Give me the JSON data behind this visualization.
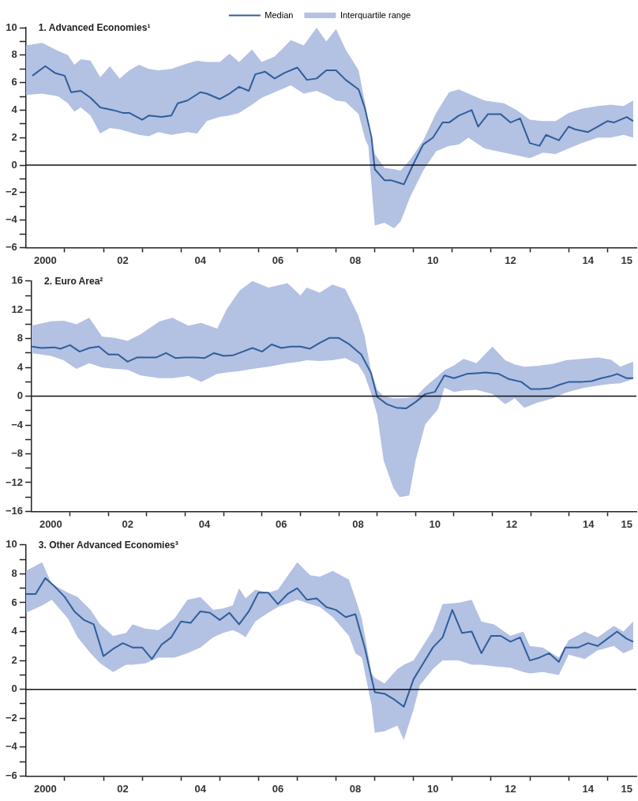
{
  "chart_data": [
    {
      "type": "line",
      "title": "1. Advanced Economies¹",
      "legend": "top",
      "xlim": [
        "2000-01",
        "2015-10"
      ],
      "xticks": [
        {
          "value": "2000-07",
          "label": "2000"
        },
        {
          "value": "2001",
          "label": null
        },
        {
          "value": "2002",
          "label": null
        },
        {
          "value": "2002-07",
          "label": "02"
        },
        {
          "value": "2003",
          "label": null
        },
        {
          "value": "2004",
          "label": null
        },
        {
          "value": "2004-07",
          "label": "04"
        },
        {
          "value": "2005",
          "label": null
        },
        {
          "value": "2006",
          "label": null
        },
        {
          "value": "2006-07",
          "label": "06"
        },
        {
          "value": "2007",
          "label": null
        },
        {
          "value": "2008",
          "label": null
        },
        {
          "value": "2008-07",
          "label": "08"
        },
        {
          "value": "2009",
          "label": null
        },
        {
          "value": "2010",
          "label": null
        },
        {
          "value": "2010-07",
          "label": "10"
        },
        {
          "value": "2011",
          "label": null
        },
        {
          "value": "2012",
          "label": null
        },
        {
          "value": "2012-07",
          "label": "12"
        },
        {
          "value": "2013",
          "label": null
        },
        {
          "value": "2014",
          "label": null
        },
        {
          "value": "2014-07",
          "label": "14"
        },
        {
          "value": "2015",
          "label": null
        },
        {
          "value": "2015-07",
          "label": "15"
        }
      ],
      "ylim": [
        -6,
        10
      ],
      "yticks": [
        -6,
        {
          "value": -5,
          "label": null
        },
        -4,
        {
          "value": -3,
          "label": null
        },
        -2,
        {
          "value": -1,
          "label": null
        },
        0,
        {
          "value": 1,
          "label": null
        },
        2,
        {
          "value": 3,
          "label": null
        },
        4,
        {
          "value": 5,
          "label": null
        },
        6,
        {
          "value": 7,
          "label": null
        },
        8,
        {
          "value": 9,
          "label": null
        },
        10
      ],
      "ref_lines": [
        {
          "axis": "y",
          "value": 0,
          "color": "#111111"
        }
      ],
      "series": [
        {
          "name": "Median",
          "type": "line",
          "color": "#2f5e9a",
          "x": [
            "2000-03",
            "2000-07",
            "2000-10",
            "2001-01",
            "2001-03",
            "2001-06",
            "2001-09",
            "2001-12",
            "2002-04",
            "2002-07",
            "2002-09",
            "2003-01",
            "2003-03",
            "2003-07",
            "2003-10",
            "2003-12",
            "2004-03",
            "2004-07",
            "2004-09",
            "2005-01",
            "2005-04",
            "2005-07",
            "2005-10",
            "2005-12",
            "2006-03",
            "2006-06",
            "2006-09",
            "2007-01",
            "2007-04",
            "2007-07",
            "2007-10",
            "2008-01",
            "2008-04",
            "2008-08",
            "2008-10",
            "2008-12",
            "2009-01",
            "2009-04",
            "2009-06",
            "2009-10",
            "2010-01",
            "2010-04",
            "2010-07",
            "2010-10",
            "2010-12",
            "2011-03",
            "2011-07",
            "2011-09",
            "2011-12",
            "2012-04",
            "2012-07",
            "2012-10",
            "2013-01",
            "2013-04",
            "2013-06",
            "2013-10",
            "2014-01",
            "2014-03",
            "2014-07",
            "2014-10",
            "2015-01",
            "2015-03",
            "2015-07",
            "2015-09"
          ],
          "values": [
            6.5,
            7.2,
            6.7,
            6.5,
            5.3,
            5.4,
            4.9,
            4.2,
            4.0,
            3.8,
            3.8,
            3.3,
            3.6,
            3.5,
            3.6,
            4.5,
            4.7,
            5.3,
            5.2,
            4.8,
            5.2,
            5.7,
            5.4,
            6.6,
            6.8,
            6.3,
            6.7,
            7.1,
            6.2,
            6.3,
            6.9,
            6.9,
            6.2,
            5.5,
            4.1,
            2.0,
            -0.3,
            -1.1,
            -1.1,
            -1.4,
            0.1,
            1.5,
            2.0,
            3.1,
            3.1,
            3.6,
            4.0,
            2.8,
            3.7,
            3.7,
            3.1,
            3.4,
            1.6,
            1.4,
            2.2,
            1.8,
            2.8,
            2.6,
            2.4,
            2.8,
            3.2,
            3.1,
            3.5,
            3.2
          ]
        },
        {
          "name": "Interquartile range",
          "type": "line",
          "color": "#b3c1e3",
          "x": [
            "2000-01",
            "2000-06",
            "2000-11",
            "2001-02",
            "2001-04",
            "2001-06",
            "2001-09",
            "2001-12",
            "2002-03",
            "2002-06",
            "2002-09",
            "2002-12",
            "2003-03",
            "2003-06",
            "2003-10",
            "2004-03",
            "2004-06",
            "2004-09",
            "2005-01",
            "2005-04",
            "2005-07",
            "2005-11",
            "2006-02",
            "2006-06",
            "2006-09",
            "2006-11",
            "2007-03",
            "2007-07",
            "2007-10",
            "2008-01",
            "2008-04",
            "2008-08",
            "2008-10",
            "2008-11",
            "2009-01",
            "2009-04",
            "2009-07",
            "2009-09",
            "2009-12",
            "2010-04",
            "2010-08",
            "2010-12",
            "2011-03",
            "2011-06",
            "2011-11",
            "2012-05",
            "2012-09",
            "2013-01",
            "2013-05",
            "2013-09",
            "2014-01",
            "2014-05",
            "2014-10",
            "2015-02",
            "2015-06",
            "2015-09"
          ],
          "upper": [
            8.7,
            8.9,
            8.3,
            8.0,
            7.3,
            7.7,
            7.6,
            6.4,
            7.2,
            6.3,
            6.9,
            7.3,
            7.0,
            6.9,
            7.0,
            7.4,
            7.6,
            7.5,
            7.5,
            8.1,
            7.5,
            8.4,
            7.5,
            7.9,
            8.6,
            9.1,
            8.7,
            10.0,
            9.0,
            9.9,
            8.4,
            6.9,
            4.5,
            2.7,
            0.8,
            -0.2,
            -0.3,
            -0.4,
            0.4,
            1.8,
            3.8,
            5.3,
            5.5,
            5.2,
            4.7,
            4.5,
            4.0,
            3.3,
            3.2,
            3.2,
            3.8,
            4.1,
            4.3,
            4.4,
            4.3,
            4.7
          ],
          "values": [
            null,
            null,
            null,
            null,
            null,
            null,
            null,
            null,
            null,
            null,
            null,
            null,
            null,
            null,
            null,
            null,
            null,
            null,
            null,
            null,
            null,
            null,
            null,
            null,
            null,
            null,
            null,
            null,
            null,
            null,
            null,
            null,
            null,
            null,
            null,
            null,
            null,
            null,
            null,
            null,
            null,
            null,
            null,
            null,
            null,
            null,
            null,
            null,
            null,
            null,
            null,
            null,
            null,
            null,
            null,
            null
          ],
          "lower": [
            5.1,
            5.2,
            5.0,
            4.5,
            3.9,
            4.2,
            3.6,
            2.3,
            2.7,
            2.6,
            2.4,
            2.2,
            2.1,
            2.4,
            2.2,
            2.4,
            2.3,
            3.2,
            3.5,
            3.6,
            3.8,
            4.4,
            4.9,
            5.3,
            5.6,
            5.8,
            5.2,
            5.4,
            5.1,
            4.7,
            4.6,
            3.7,
            1.9,
            1.4,
            -4.4,
            -4.2,
            -4.6,
            -4.1,
            -2.3,
            -0.4,
            1.0,
            1.4,
            1.5,
            2.0,
            1.2,
            0.9,
            0.7,
            0.5,
            0.9,
            0.8,
            1.2,
            1.6,
            2.0,
            2.0,
            2.2,
            2.0
          ]
        }
      ]
    },
    {
      "type": "line",
      "title": "2. Euro Area²",
      "xlim": [
        "2000-01",
        "2015-10"
      ],
      "xticks": [
        {
          "value": "2000-07",
          "label": "2000"
        },
        {
          "value": "2001",
          "label": null
        },
        {
          "value": "2002",
          "label": null
        },
        {
          "value": "2002-07",
          "label": "02"
        },
        {
          "value": "2003",
          "label": null
        },
        {
          "value": "2004",
          "label": null
        },
        {
          "value": "2004-07",
          "label": "04"
        },
        {
          "value": "2005",
          "label": null
        },
        {
          "value": "2006",
          "label": null
        },
        {
          "value": "2006-07",
          "label": "06"
        },
        {
          "value": "2007",
          "label": null
        },
        {
          "value": "2008",
          "label": null
        },
        {
          "value": "2008-07",
          "label": "08"
        },
        {
          "value": "2009",
          "label": null
        },
        {
          "value": "2010",
          "label": null
        },
        {
          "value": "2010-07",
          "label": "10"
        },
        {
          "value": "2011",
          "label": null
        },
        {
          "value": "2012",
          "label": null
        },
        {
          "value": "2012-07",
          "label": "12"
        },
        {
          "value": "2013",
          "label": null
        },
        {
          "value": "2014",
          "label": null
        },
        {
          "value": "2014-07",
          "label": "14"
        },
        {
          "value": "2015",
          "label": null
        },
        {
          "value": "2015-07",
          "label": "15"
        }
      ],
      "ylim": [
        -16,
        16
      ],
      "yticks": [
        -16,
        {
          "value": -14,
          "label": null
        },
        -12,
        {
          "value": -10,
          "label": null
        },
        -8,
        {
          "value": -6,
          "label": null
        },
        -4,
        {
          "value": -2,
          "label": null
        },
        0,
        {
          "value": 2,
          "label": null
        },
        4,
        {
          "value": 6,
          "label": null
        },
        8,
        {
          "value": 10,
          "label": null
        },
        12,
        {
          "value": 14,
          "label": null
        },
        16
      ],
      "ref_lines": [
        {
          "axis": "y",
          "value": 0,
          "color": "#111111"
        }
      ],
      "series": [
        {
          "type": "line",
          "color": "#2f5e9a",
          "x": [
            "2000-01",
            "2000-04",
            "2000-08",
            "2000-10",
            "2001-01",
            "2001-04",
            "2001-07",
            "2001-10",
            "2002-01",
            "2002-04",
            "2002-07",
            "2002-10",
            "2003-01",
            "2003-04",
            "2003-07",
            "2003-10",
            "2004-01",
            "2004-04",
            "2004-07",
            "2004-10",
            "2005-01",
            "2005-04",
            "2005-07",
            "2005-10",
            "2006-01",
            "2006-04",
            "2006-07",
            "2006-10",
            "2007-01",
            "2007-04",
            "2007-07",
            "2007-10",
            "2008-01",
            "2008-04",
            "2008-08",
            "2008-11",
            "2009-01",
            "2009-04",
            "2009-07",
            "2009-10",
            "2010-01",
            "2010-04",
            "2010-07",
            "2010-10",
            "2011-01",
            "2011-05",
            "2011-08",
            "2011-11",
            "2012-03",
            "2012-06",
            "2012-10",
            "2013-01",
            "2013-04",
            "2013-07",
            "2013-10",
            "2014-01",
            "2014-05",
            "2014-08",
            "2014-11",
            "2015-02",
            "2015-04",
            "2015-07",
            "2015-09"
          ],
          "values": [
            6.9,
            6.7,
            6.8,
            6.6,
            7.1,
            6.2,
            6.7,
            6.9,
            5.8,
            5.8,
            4.8,
            5.4,
            5.4,
            5.4,
            6.0,
            5.3,
            5.4,
            5.4,
            5.3,
            6.0,
            5.6,
            5.7,
            6.2,
            6.7,
            6.2,
            7.2,
            6.7,
            6.9,
            6.9,
            6.6,
            7.4,
            8.1,
            8.1,
            7.3,
            5.8,
            3.3,
            -0.1,
            -1.1,
            -1.6,
            -1.7,
            -0.8,
            0.3,
            0.6,
            2.9,
            2.5,
            3.1,
            3.2,
            3.3,
            3.1,
            2.4,
            2.0,
            1.0,
            1.0,
            1.1,
            1.6,
            2.0,
            2.0,
            2.1,
            2.5,
            2.8,
            3.1,
            2.5,
            2.5
          ]
        },
        {
          "type": "line",
          "color": "#b3c1e3",
          "x": [
            "2000-01",
            "2000-07",
            "2000-11",
            "2001-03",
            "2001-07",
            "2001-11",
            "2002-03",
            "2002-07",
            "2002-11",
            "2003-05",
            "2003-09",
            "2004-02",
            "2004-06",
            "2004-11",
            "2005-02",
            "2005-06",
            "2005-10",
            "2006-03",
            "2006-09",
            "2007-01",
            "2007-03",
            "2007-07",
            "2007-11",
            "2008-03",
            "2008-07",
            "2008-09",
            "2008-11",
            "2009-01",
            "2009-03",
            "2009-06",
            "2009-08",
            "2009-11",
            "2010-01",
            "2010-04",
            "2010-08",
            "2010-10",
            "2011-01",
            "2011-04",
            "2011-08",
            "2012-01",
            "2012-05",
            "2012-08",
            "2012-11",
            "2013-03",
            "2013-08",
            "2013-12",
            "2014-05",
            "2014-10",
            "2015-02",
            "2015-05",
            "2015-09"
          ],
          "upper": [
            9.8,
            10.4,
            10.5,
            10.0,
            10.9,
            8.3,
            8.1,
            7.7,
            8.6,
            10.4,
            10.9,
            9.8,
            10.2,
            9.4,
            12.1,
            14.7,
            16.0,
            15.1,
            15.7,
            14.0,
            15.1,
            14.4,
            15.5,
            14.9,
            11.3,
            8.5,
            3.7,
            0.9,
            0.0,
            -0.3,
            -0.3,
            -0.2,
            -0.1,
            1.3,
            2.8,
            3.6,
            4.3,
            5.2,
            4.6,
            6.9,
            5.0,
            4.4,
            4.1,
            4.2,
            4.5,
            5.0,
            5.2,
            5.4,
            5.1,
            4.1,
            4.8
          ],
          "values": [
            null,
            null,
            null,
            null,
            null,
            null,
            null,
            null,
            null,
            null,
            null,
            null,
            null,
            null,
            null,
            null,
            null,
            null,
            null,
            null,
            null,
            null,
            null,
            null,
            null,
            null,
            null,
            null,
            null,
            null,
            null,
            null,
            null,
            null,
            null,
            null,
            null,
            null,
            null,
            null,
            null,
            null,
            null,
            null,
            null,
            null,
            null,
            null,
            null,
            null,
            null
          ],
          "lower": [
            6.0,
            5.6,
            5.0,
            3.8,
            4.6,
            4.0,
            3.8,
            3.7,
            2.9,
            2.5,
            2.5,
            2.8,
            2.0,
            3.1,
            3.3,
            3.5,
            3.8,
            4.1,
            4.6,
            4.8,
            5.0,
            4.9,
            5.0,
            5.3,
            4.4,
            3.0,
            0.5,
            -2.6,
            -8.9,
            -12.7,
            -14.0,
            -13.8,
            -8.9,
            -3.9,
            -1.8,
            1.2,
            0.6,
            0.8,
            0.9,
            0.3,
            -1.1,
            -0.3,
            -1.6,
            -0.9,
            -0.3,
            0.5,
            1.1,
            1.5,
            1.7,
            1.8,
            2.4
          ]
        }
      ]
    },
    {
      "type": "line",
      "title": "3. Other Advanced Economies³",
      "xlim": [
        "2000-01",
        "2015-10"
      ],
      "xticks": [
        {
          "value": "2000-07",
          "label": "2000"
        },
        {
          "value": "2001",
          "label": null
        },
        {
          "value": "2002",
          "label": null
        },
        {
          "value": "2002-07",
          "label": "02"
        },
        {
          "value": "2003",
          "label": null
        },
        {
          "value": "2004",
          "label": null
        },
        {
          "value": "2004-07",
          "label": "04"
        },
        {
          "value": "2005",
          "label": null
        },
        {
          "value": "2006",
          "label": null
        },
        {
          "value": "2006-07",
          "label": "06"
        },
        {
          "value": "2007",
          "label": null
        },
        {
          "value": "2008",
          "label": null
        },
        {
          "value": "2008-07",
          "label": "08"
        },
        {
          "value": "2009",
          "label": null
        },
        {
          "value": "2010",
          "label": null
        },
        {
          "value": "2010-07",
          "label": "10"
        },
        {
          "value": "2011",
          "label": null
        },
        {
          "value": "2012",
          "label": null
        },
        {
          "value": "2012-07",
          "label": "12"
        },
        {
          "value": "2013",
          "label": null
        },
        {
          "value": "2014",
          "label": null
        },
        {
          "value": "2014-07",
          "label": "14"
        },
        {
          "value": "2015",
          "label": null
        },
        {
          "value": "2015-07",
          "label": "15"
        }
      ],
      "ylim": [
        -6,
        10
      ],
      "yticks": [
        -6,
        {
          "value": -5,
          "label": null
        },
        -4,
        {
          "value": -3,
          "label": null
        },
        -2,
        {
          "value": -1,
          "label": null
        },
        0,
        {
          "value": 1,
          "label": null
        },
        2,
        {
          "value": 3,
          "label": null
        },
        4,
        {
          "value": 5,
          "label": null
        },
        6,
        {
          "value": 7,
          "label": null
        },
        8,
        {
          "value": 9,
          "label": null
        },
        10
      ],
      "ref_lines": [
        {
          "axis": "y",
          "value": 0,
          "color": "#111111"
        }
      ],
      "series": [
        {
          "type": "line",
          "color": "#2f5e9a",
          "x": [
            "2000-01",
            "2000-04",
            "2000-07",
            "2000-10",
            "2001-01",
            "2001-04",
            "2001-07",
            "2001-10",
            "2002-01",
            "2002-04",
            "2002-07",
            "2002-10",
            "2003-01",
            "2003-04",
            "2003-07",
            "2003-10",
            "2004-01",
            "2004-04",
            "2004-07",
            "2004-10",
            "2005-01",
            "2005-04",
            "2005-07",
            "2005-10",
            "2006-01",
            "2006-04",
            "2006-07",
            "2006-10",
            "2007-01",
            "2007-04",
            "2007-07",
            "2007-10",
            "2008-01",
            "2008-04",
            "2008-07",
            "2008-10",
            "2009-01",
            "2009-04",
            "2009-07",
            "2009-10",
            "2010-01",
            "2010-04",
            "2010-07",
            "2010-10",
            "2011-01",
            "2011-04",
            "2011-07",
            "2011-10",
            "2012-01",
            "2012-04",
            "2012-07",
            "2012-10",
            "2013-01",
            "2013-04",
            "2013-07",
            "2013-10",
            "2013-12",
            "2014-04",
            "2014-07",
            "2014-10",
            "2015-01",
            "2015-04",
            "2015-07",
            "2015-09"
          ],
          "values": [
            6.6,
            6.6,
            7.7,
            7.1,
            6.4,
            5.4,
            4.8,
            4.5,
            2.3,
            2.8,
            3.2,
            2.9,
            2.9,
            2.1,
            3.1,
            3.6,
            4.7,
            4.6,
            5.4,
            5.3,
            4.8,
            5.3,
            4.5,
            5.4,
            6.7,
            6.7,
            5.9,
            6.6,
            7.0,
            6.2,
            6.3,
            5.7,
            5.5,
            5.0,
            5.2,
            2.8,
            -0.2,
            -0.3,
            -0.7,
            -1.2,
            0.7,
            1.8,
            2.9,
            3.6,
            5.5,
            3.9,
            4.0,
            2.5,
            3.7,
            3.7,
            3.3,
            3.6,
            2.0,
            2.2,
            2.5,
            1.9,
            2.9,
            2.9,
            3.2,
            3.0,
            3.5,
            4.0,
            3.5,
            3.3
          ]
        },
        {
          "type": "line",
          "color": "#b3c1e3",
          "x": [
            "2000-01",
            "2000-06",
            "2000-09",
            "2001-02",
            "2001-05",
            "2001-09",
            "2001-12",
            "2002-04",
            "2002-08",
            "2002-10",
            "2003-02",
            "2003-06",
            "2003-11",
            "2004-03",
            "2004-07",
            "2004-11",
            "2005-02",
            "2005-05",
            "2005-07",
            "2005-09",
            "2005-12",
            "2006-04",
            "2006-07",
            "2007-01",
            "2007-05",
            "2007-08",
            "2007-12",
            "2008-05",
            "2008-07",
            "2008-09",
            "2008-12",
            "2009-01",
            "2009-04",
            "2009-08",
            "2009-10",
            "2010-01",
            "2010-03",
            "2010-07",
            "2010-10",
            "2011-03",
            "2011-07",
            "2011-10",
            "2012-02",
            "2012-07",
            "2012-11",
            "2013-01",
            "2013-05",
            "2013-10",
            "2014-01",
            "2014-06",
            "2014-10",
            "2015-03",
            "2015-06",
            "2015-09"
          ],
          "upper": [
            8.2,
            8.8,
            7.3,
            6.7,
            6.4,
            5.5,
            4.5,
            3.7,
            3.9,
            4.5,
            4.2,
            4.1,
            4.9,
            6.2,
            6.4,
            5.5,
            5.6,
            5.8,
            7.0,
            6.3,
            6.9,
            6.7,
            6.9,
            8.8,
            7.9,
            7.8,
            8.2,
            7.6,
            6.3,
            4.9,
            1.1,
            0.8,
            0.4,
            1.4,
            1.7,
            2.0,
            2.7,
            4.1,
            5.9,
            6.0,
            6.2,
            4.7,
            4.5,
            3.7,
            4.0,
            3.0,
            2.9,
            2.2,
            3.4,
            4.0,
            3.6,
            4.4,
            4.0,
            4.7
          ],
          "values": [
            null,
            null,
            null,
            null,
            null,
            null,
            null,
            null,
            null,
            null,
            null,
            null,
            null,
            null,
            null,
            null,
            null,
            null,
            null,
            null,
            null,
            null,
            null,
            null,
            null,
            null,
            null,
            null,
            null,
            null,
            null,
            null,
            null,
            null,
            null,
            null,
            null,
            null,
            null,
            null,
            null,
            null,
            null,
            null,
            null,
            null,
            null,
            null,
            null,
            null,
            null,
            null,
            null,
            null
          ],
          "lower": [
            5.3,
            5.8,
            6.2,
            4.9,
            3.6,
            2.5,
            1.8,
            1.2,
            1.7,
            1.7,
            1.8,
            2.2,
            2.2,
            2.5,
            2.9,
            3.6,
            3.9,
            4.1,
            3.9,
            3.6,
            4.7,
            5.3,
            5.7,
            6.2,
            5.9,
            5.7,
            5.0,
            3.7,
            2.5,
            2.2,
            -1.1,
            -3.0,
            -2.9,
            -2.5,
            -3.5,
            -1.4,
            0.3,
            1.4,
            2.0,
            2.0,
            1.7,
            1.7,
            1.6,
            1.5,
            1.2,
            1.1,
            1.2,
            1.0,
            2.4,
            2.1,
            2.7,
            3.0,
            2.5,
            2.8
          ]
        }
      ]
    }
  ]
}
